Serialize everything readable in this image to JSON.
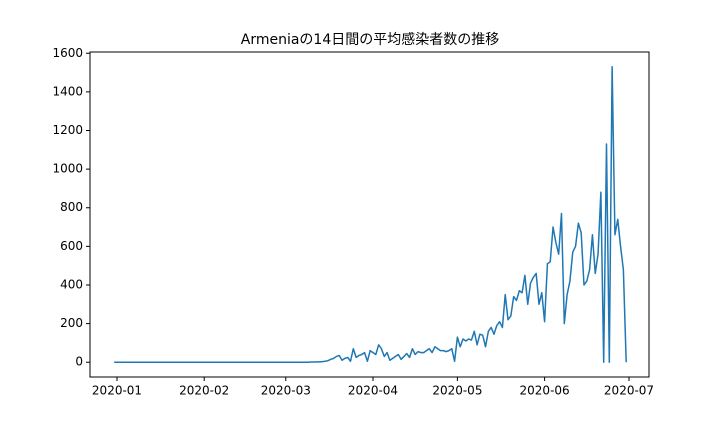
{
  "chart_data": {
    "type": "line",
    "title": "Armeniaの14日間の平均感染者数の推移",
    "categories": [
      null,
      "2020-01",
      null,
      null,
      null,
      null,
      null,
      null,
      null,
      null,
      null,
      null,
      null,
      null,
      null,
      null,
      null,
      null,
      null,
      null,
      null,
      null,
      null,
      null,
      null,
      null,
      null,
      null,
      null,
      null,
      null,
      null,
      "2020-02",
      null,
      null,
      null,
      null,
      null,
      null,
      null,
      null,
      null,
      null,
      null,
      null,
      null,
      null,
      null,
      null,
      null,
      null,
      null,
      null,
      null,
      null,
      null,
      null,
      null,
      null,
      null,
      null,
      "2020-03",
      null,
      null,
      null,
      null,
      null,
      null,
      null,
      null,
      null,
      null,
      null,
      null,
      null,
      null,
      null,
      null,
      null,
      null,
      null,
      null,
      null,
      null,
      null,
      null,
      null,
      null,
      null,
      null,
      null,
      null,
      "2020-04",
      null,
      null,
      null,
      null,
      null,
      null,
      null,
      null,
      null,
      null,
      null,
      null,
      null,
      null,
      null,
      null,
      null,
      null,
      null,
      null,
      null,
      null,
      null,
      null,
      null,
      null,
      null,
      null,
      null,
      "2020-05",
      null,
      null,
      null,
      null,
      null,
      null,
      null,
      null,
      null,
      null,
      null,
      null,
      null,
      null,
      null,
      null,
      null,
      null,
      null,
      null,
      null,
      null,
      null,
      null,
      null,
      null,
      null,
      null,
      null,
      null,
      "2020-06",
      null,
      null,
      null,
      null,
      null,
      null,
      null,
      null,
      null,
      null,
      null,
      null,
      null,
      null,
      null,
      null,
      null,
      null,
      null,
      null,
      null,
      null,
      null,
      null,
      null,
      null,
      null,
      null,
      null,
      "2020-07"
    ],
    "series": [
      {
        "name": "Armenia",
        "color": "#1f77b4",
        "values": [
          0,
          0,
          0,
          0,
          0,
          0,
          0,
          0,
          0,
          0,
          0,
          0,
          0,
          0,
          0,
          0,
          0,
          0,
          0,
          0,
          0,
          0,
          0,
          0,
          0,
          0,
          0,
          0,
          0,
          0,
          0,
          0,
          0,
          0,
          0,
          0,
          0,
          0,
          0,
          0,
          0,
          0,
          0,
          0,
          0,
          0,
          0,
          0,
          0,
          0,
          0,
          0,
          0,
          0,
          0,
          0,
          0,
          0,
          0,
          0,
          0,
          0,
          0,
          0,
          0,
          0,
          0,
          0,
          0,
          0,
          1,
          1,
          2,
          2,
          3,
          5,
          8,
          15,
          20,
          30,
          35,
          10,
          20,
          25,
          5,
          70,
          25,
          35,
          40,
          50,
          5,
          60,
          50,
          40,
          90,
          70,
          30,
          50,
          10,
          20,
          30,
          40,
          15,
          30,
          45,
          25,
          70,
          40,
          55,
          50,
          50,
          60,
          70,
          50,
          80,
          70,
          60,
          60,
          55,
          60,
          70,
          5,
          130,
          80,
          120,
          110,
          120,
          115,
          160,
          90,
          145,
          140,
          80,
          160,
          180,
          145,
          190,
          210,
          180,
          350,
          220,
          240,
          340,
          320,
          370,
          360,
          450,
          300,
          410,
          440,
          460,
          300,
          360,
          210,
          510,
          520,
          700,
          620,
          560,
          770,
          200,
          350,
          420,
          570,
          600,
          720,
          670,
          400,
          420,
          480,
          660,
          460,
          560,
          880,
          0,
          1130,
          0,
          1530,
          660,
          740,
          600,
          480,
          0,
          null
        ]
      }
    ],
    "ylim": [
      -76.5,
      1606.5
    ],
    "yticks": [
      0,
      200,
      400,
      600,
      800,
      1000,
      1200,
      1400,
      1600
    ]
  }
}
